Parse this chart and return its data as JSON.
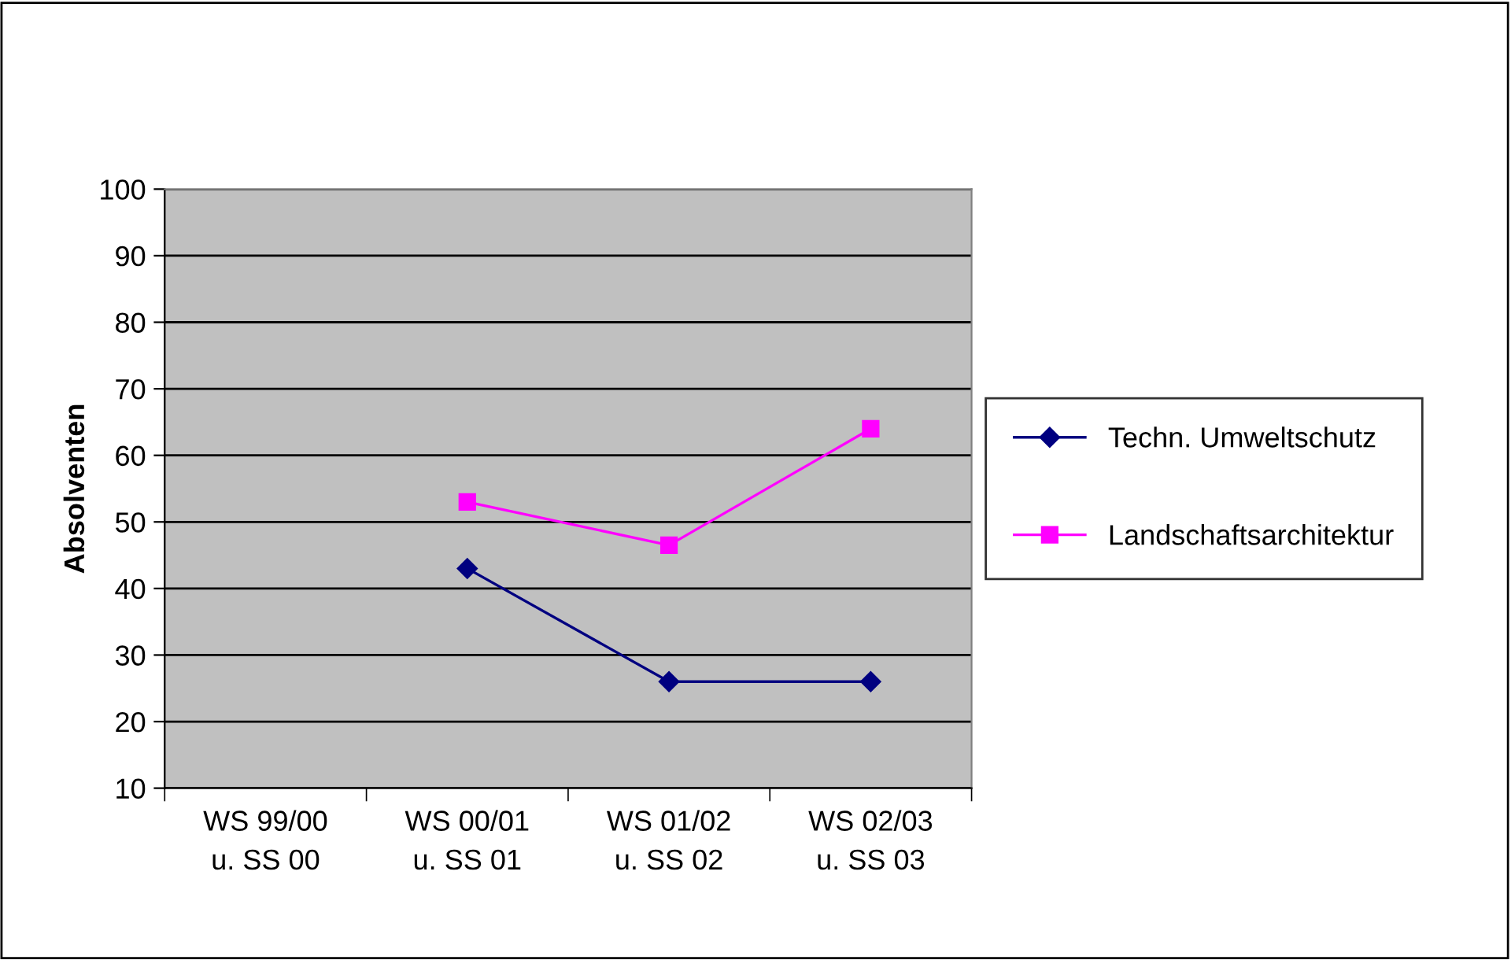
{
  "chart_data": {
    "type": "line",
    "ylabel": "Absolventen",
    "categories": [
      "WS 99/00\nu. SS 00",
      "WS 00/01\nu. SS 01",
      "WS 01/02\nu. SS 02",
      "WS 02/03\nu. SS 03"
    ],
    "series": [
      {
        "name": "Techn. Umweltschutz",
        "color": "#000080",
        "marker": "diamond",
        "values": [
          null,
          43,
          26,
          26
        ]
      },
      {
        "name": "Landschaftsarchitektur",
        "color": "#ff00ff",
        "marker": "square",
        "values": [
          null,
          53,
          46.5,
          64
        ]
      }
    ],
    "ylim": [
      10,
      100
    ],
    "yticks": [
      10,
      20,
      30,
      40,
      50,
      60,
      70,
      80,
      90,
      100
    ],
    "grid": "y",
    "legend": "right"
  }
}
